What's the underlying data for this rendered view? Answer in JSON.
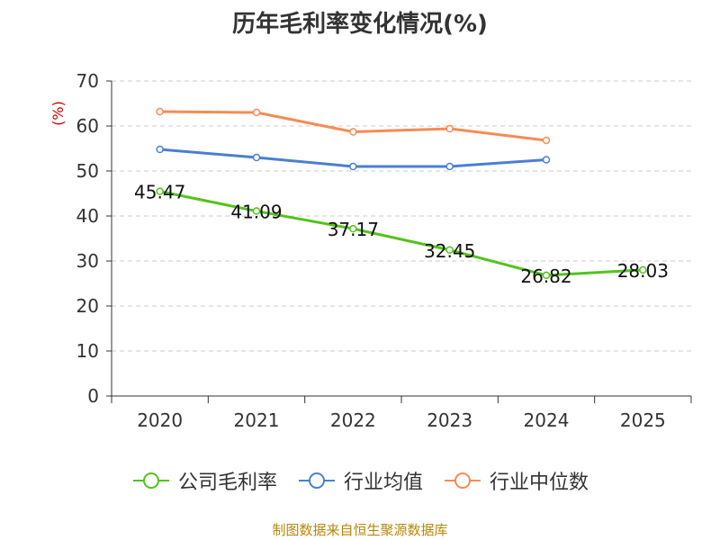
{
  "title": "历年毛利率变化情况(%)",
  "source": "制图数据来自恒生聚源数据库",
  "chart_data": {
    "type": "line",
    "title": "历年毛利率变化情况(%)",
    "xlabel": "",
    "ylabel": "(%)",
    "categories": [
      "2020",
      "2021",
      "2022",
      "2023",
      "2024",
      "2025"
    ],
    "ylim": [
      0,
      70
    ],
    "yticks": [
      0,
      10,
      20,
      30,
      40,
      50,
      60,
      70
    ],
    "grid": true,
    "legend_position": "bottom",
    "series": [
      {
        "name": "公司毛利率",
        "color": "#52c41a",
        "values": [
          45.47,
          41.09,
          37.17,
          32.45,
          26.82,
          28.03
        ],
        "labels": [
          "45.47",
          "41.09",
          "37.17",
          "32.45",
          "26.82",
          "28.03"
        ]
      },
      {
        "name": "行业均值",
        "color": "#4a7fd4",
        "values": [
          54.8,
          53.0,
          51.0,
          51.0,
          52.5,
          null
        ]
      },
      {
        "name": "行业中位数",
        "color": "#f58b55",
        "values": [
          63.2,
          63.0,
          58.7,
          59.4,
          56.8,
          null
        ]
      }
    ]
  }
}
